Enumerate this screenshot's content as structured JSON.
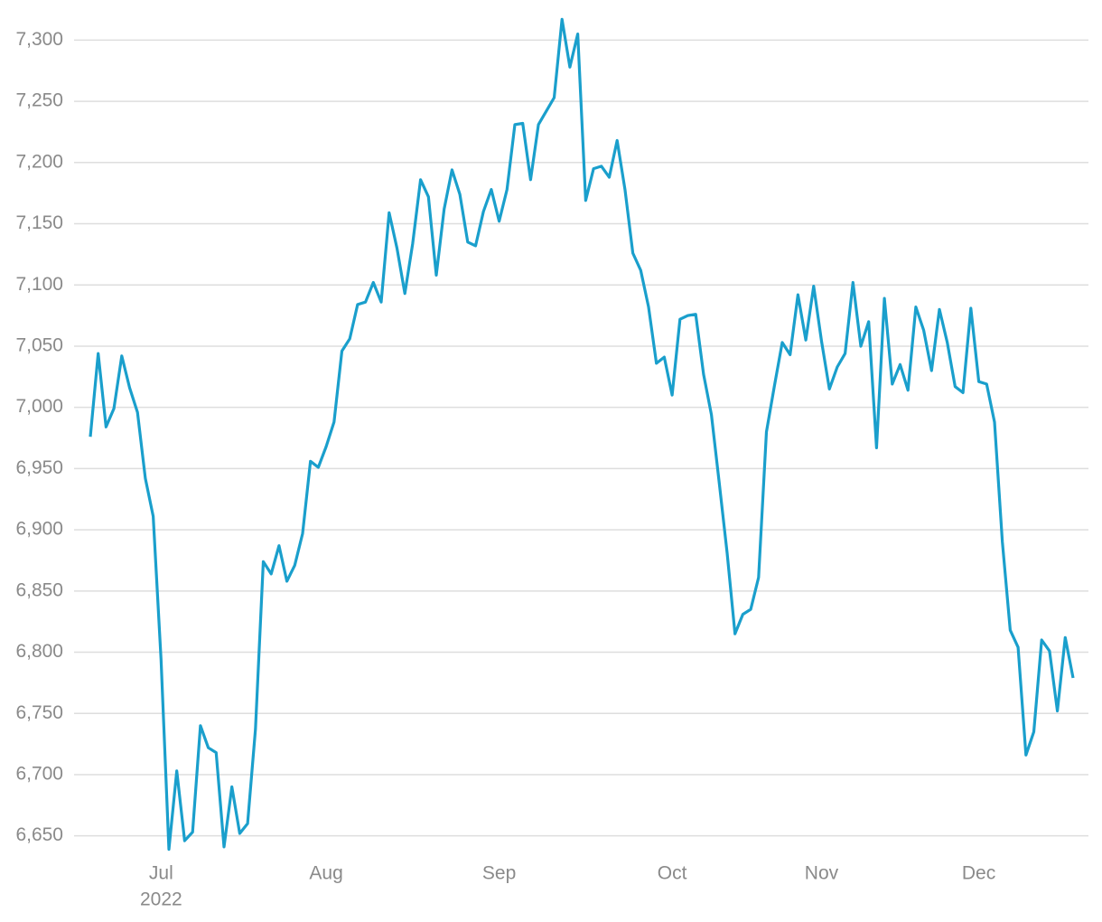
{
  "chart_data": {
    "type": "line",
    "color": "#1a9fcc",
    "grid": true,
    "ylim": [
      6635,
      7318
    ],
    "yticks": [
      {
        "value": 6650,
        "label": "6,650"
      },
      {
        "value": 6700,
        "label": "6,700"
      },
      {
        "value": 6750,
        "label": "6,750"
      },
      {
        "value": 6800,
        "label": "6,800"
      },
      {
        "value": 6850,
        "label": "6,850"
      },
      {
        "value": 6900,
        "label": "6,900"
      },
      {
        "value": 6950,
        "label": "6,950"
      },
      {
        "value": 7000,
        "label": "7,000"
      },
      {
        "value": 7050,
        "label": "7,050"
      },
      {
        "value": 7100,
        "label": "7,100"
      },
      {
        "value": 7150,
        "label": "7,150"
      },
      {
        "value": 7200,
        "label": "7,200"
      },
      {
        "value": 7250,
        "label": "7,250"
      },
      {
        "value": 7300,
        "label": "7,300"
      }
    ],
    "x_year_label": "2022",
    "categories": [
      null,
      null,
      null,
      null,
      null,
      null,
      null,
      null,
      null,
      "Jul",
      null,
      null,
      null,
      null,
      null,
      null,
      null,
      null,
      null,
      null,
      null,
      null,
      null,
      null,
      null,
      null,
      null,
      null,
      null,
      null,
      "Aug",
      null,
      null,
      null,
      null,
      null,
      null,
      null,
      null,
      null,
      null,
      null,
      null,
      null,
      null,
      null,
      null,
      null,
      null,
      null,
      null,
      null,
      "Sep",
      null,
      null,
      null,
      null,
      null,
      null,
      null,
      null,
      null,
      null,
      null,
      null,
      null,
      null,
      null,
      null,
      null,
      null,
      null,
      null,
      null,
      "Oct",
      null,
      null,
      null,
      null,
      null,
      null,
      null,
      null,
      null,
      null,
      null,
      null,
      null,
      null,
      null,
      null,
      null,
      null,
      "Nov",
      null,
      null,
      null,
      null,
      null,
      null,
      null,
      null,
      null,
      null,
      null,
      null,
      null,
      null,
      null,
      null,
      null,
      null,
      null,
      "Dec",
      null,
      null,
      null,
      null,
      null,
      null,
      null,
      null,
      null,
      null,
      null,
      null
    ],
    "values": [
      6976,
      7044,
      6984,
      6999,
      7042,
      7016,
      6996,
      6942,
      6911,
      6794,
      6639,
      6703,
      6646,
      6653,
      6740,
      6722,
      6718,
      6641,
      6690,
      6652,
      6660,
      6737,
      6874,
      6864,
      6887,
      6858,
      6871,
      6897,
      6956,
      6951,
      6968,
      6988,
      7046,
      7056,
      7084,
      7086,
      7102,
      7086,
      7159,
      7130,
      7093,
      7134,
      7186,
      7172,
      7108,
      7162,
      7194,
      7174,
      7135,
      7132,
      7160,
      7178,
      7152,
      7178,
      7231,
      7232,
      7186,
      7231,
      7242,
      7253,
      7317,
      7278,
      7305,
      7169,
      7195,
      7197,
      7188,
      7218,
      7178,
      7126,
      7112,
      7082,
      7036,
      7041,
      7010,
      7072,
      7075,
      7076,
      7027,
      6994,
      6938,
      6881,
      6815,
      6831,
      6835,
      6861,
      6980,
      7017,
      7053,
      7043,
      7092,
      7055,
      7099,
      7054,
      7015,
      7033,
      7044,
      7102,
      7050,
      7070,
      6967,
      7089,
      7019,
      7035,
      7014,
      7082,
      7063,
      7030,
      7080,
      7053,
      7017,
      7012,
      7081,
      7021,
      7019,
      6988,
      6890,
      6818,
      6804,
      6716,
      6735,
      6810,
      6801,
      6752,
      6812,
      6779
    ]
  }
}
